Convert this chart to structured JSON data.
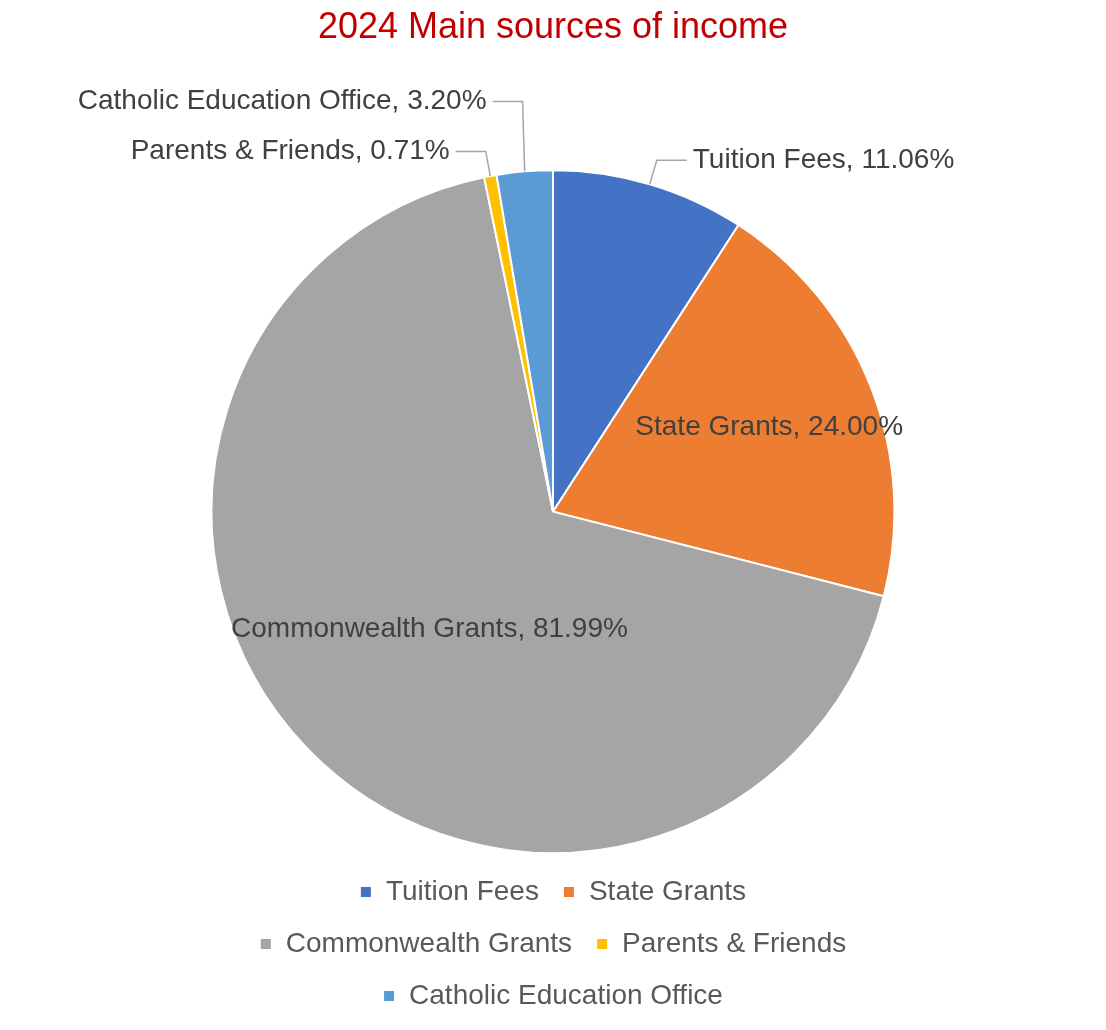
{
  "chart_data": {
    "type": "pie",
    "title": "2024 Main sources of income",
    "categories": [
      "Tuition Fees",
      "State Grants",
      "Commonwealth Grants",
      "Parents & Friends",
      "Catholic Education Office"
    ],
    "values": [
      11.06,
      24.0,
      81.99,
      0.71,
      3.2
    ],
    "value_labels": [
      "Tuition Fees, 11.06%",
      "State Grants, 24.00%",
      "Commonwealth Grants, 81.99%",
      "Parents & Friends, 0.71%",
      "Catholic Education Office, 3.20%"
    ],
    "colors": [
      "#4472c4",
      "#ed7d31",
      "#a5a5a5",
      "#ffc000",
      "#5b9bd5"
    ],
    "legend": "bottom"
  }
}
